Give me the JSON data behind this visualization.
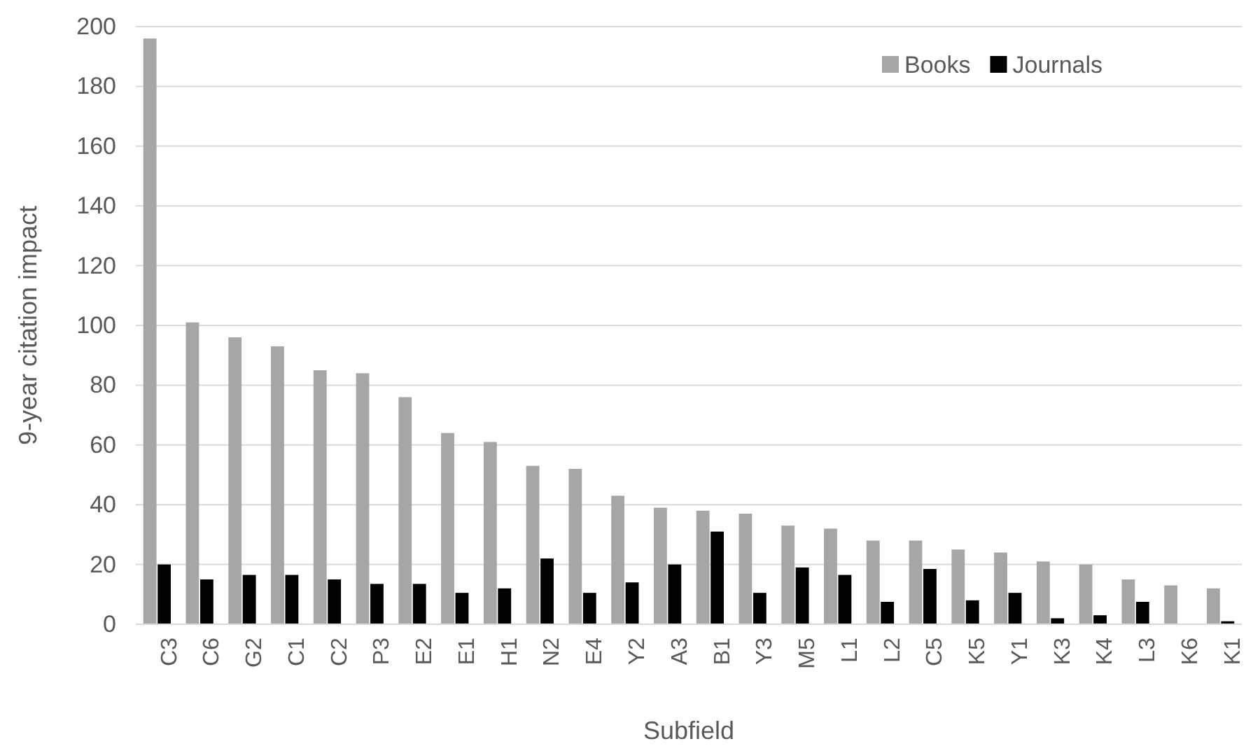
{
  "chart_data": {
    "type": "bar",
    "xlabel": "Subfield",
    "ylabel": "9-year citation impact",
    "categories": [
      "C3",
      "C6",
      "G2",
      "C1",
      "C2",
      "P3",
      "E2",
      "E1",
      "H1",
      "N2",
      "E4",
      "Y2",
      "A3",
      "B1",
      "Y3",
      "M5",
      "L1",
      "L2",
      "C5",
      "K5",
      "Y1",
      "K3",
      "K4",
      "L3",
      "K6",
      "K1"
    ],
    "series": [
      {
        "name": "Books",
        "color": "#a6a6a6",
        "values": [
          196,
          101,
          96,
          93,
          85,
          84,
          76,
          64,
          61,
          53,
          52,
          43,
          39,
          38,
          37,
          33,
          32,
          28,
          28,
          25,
          24,
          21,
          20,
          15,
          13,
          12
        ]
      },
      {
        "name": "Journals",
        "color": "#000000",
        "values": [
          20,
          15,
          16.5,
          16.5,
          15,
          13.5,
          13.5,
          10.5,
          12,
          22,
          10.5,
          14,
          20,
          31,
          10.5,
          19,
          16.5,
          7.5,
          18.5,
          8,
          10.5,
          2,
          3,
          7.5,
          0,
          1
        ]
      }
    ],
    "ylim": [
      0,
      200
    ],
    "yticks": [
      0,
      20,
      40,
      60,
      80,
      100,
      120,
      140,
      160,
      180,
      200
    ],
    "grid": "y",
    "legend": "top right"
  }
}
